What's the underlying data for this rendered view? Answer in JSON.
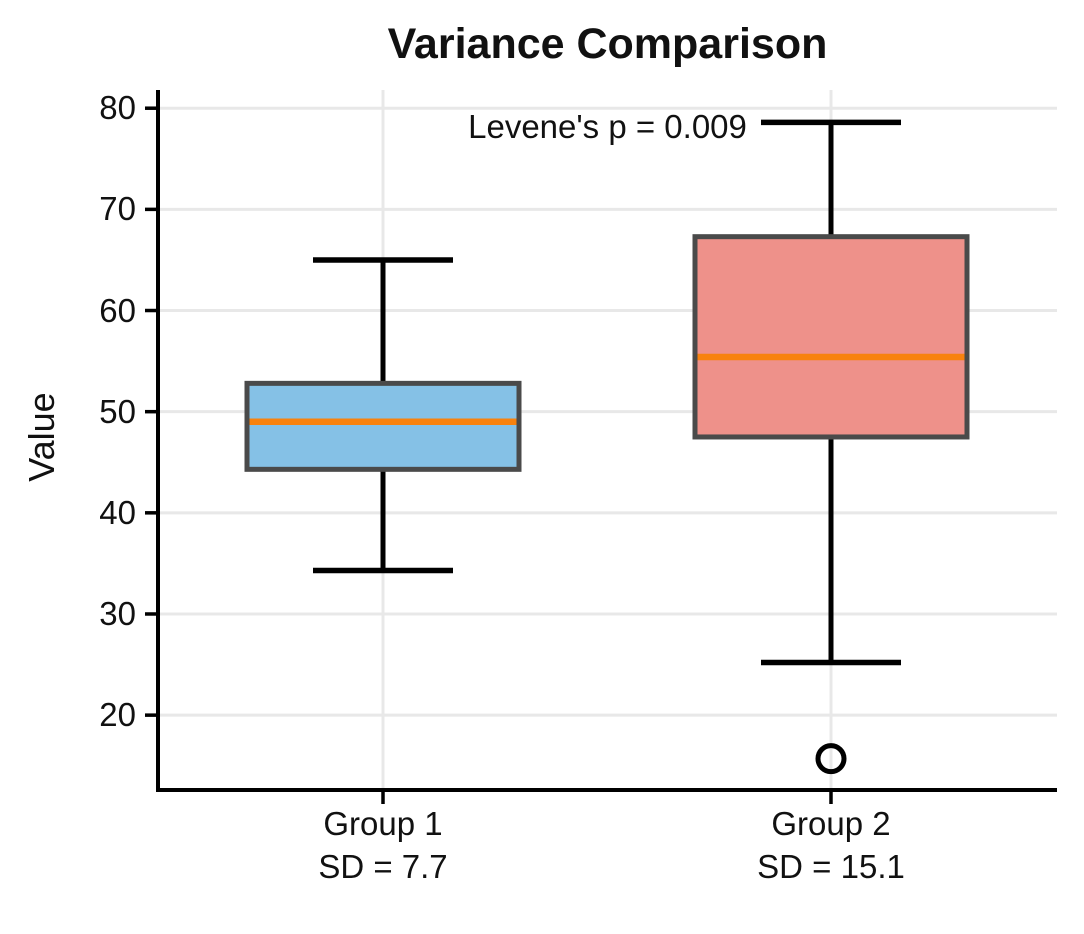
{
  "chart_data": {
    "type": "boxplot",
    "title": "Variance Comparison",
    "annotation": "Levene's p = 0.009",
    "ylabel": "Value",
    "xlabel": "",
    "ylim": [
      12.6,
      81.8
    ],
    "yticks": [
      20,
      30,
      40,
      50,
      60,
      70,
      80
    ],
    "grid": "on",
    "legend": "none",
    "groups": [
      {
        "label": "Group 1",
        "sd_label": "SD = 7.7",
        "sd": 7.7,
        "whisker_low": 34.3,
        "q1": 44.3,
        "median": 49.0,
        "q3": 52.8,
        "whisker_high": 65.0,
        "outliers": [],
        "box_color": "#85c1e6"
      },
      {
        "label": "Group 2",
        "sd_label": "SD = 15.1",
        "sd": 15.1,
        "whisker_low": 25.2,
        "q1": 47.5,
        "median": 55.4,
        "q3": 67.3,
        "whisker_high": 78.6,
        "outliers": [
          15.7
        ],
        "box_color": "#ee918a"
      }
    ],
    "colors": {
      "median": "#f8820e",
      "box_edge": "#4a4a4a",
      "whisker": "#000000",
      "spine": "#000000",
      "grid": "#e8e8e8",
      "text": "#111111"
    }
  }
}
